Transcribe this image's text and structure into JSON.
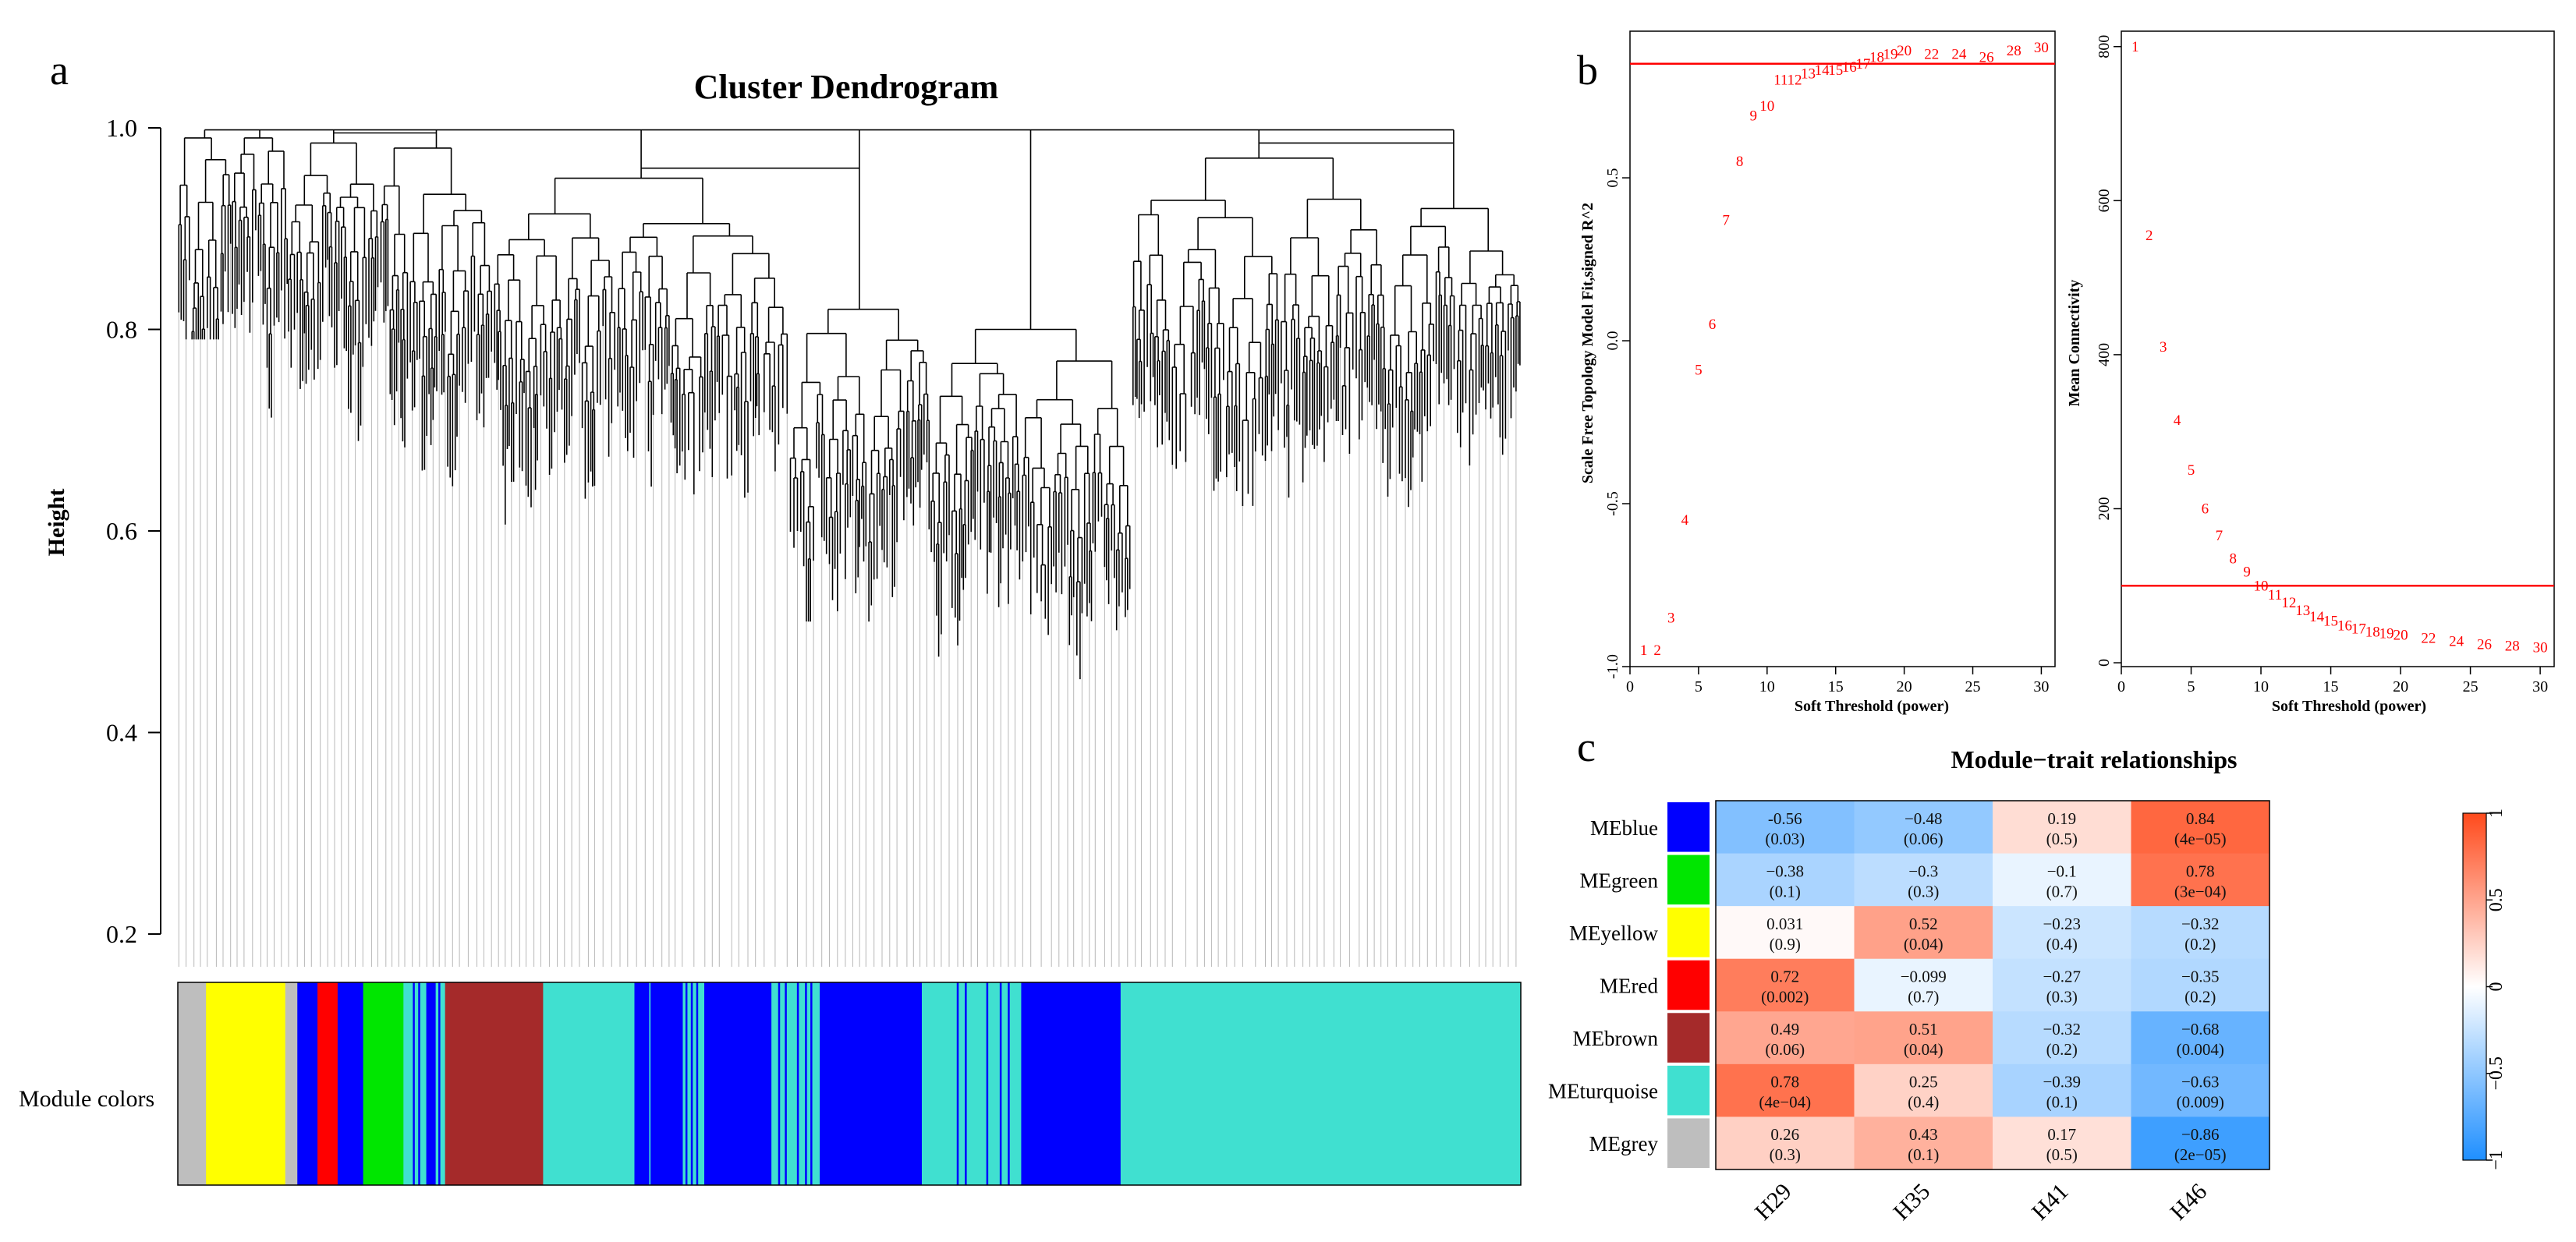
{
  "panel_labels": [
    "a",
    "b",
    "c"
  ],
  "chart_data": [
    {
      "type": "dendrogram",
      "id": "a",
      "title": "Cluster Dendrogram",
      "ylabel": "Height",
      "xlabel": "",
      "ylim": [
        0.2,
        1.0
      ],
      "yticks": [
        "0.2",
        "0.4",
        "0.6",
        "0.8",
        "1.0"
      ],
      "yticks_values": [
        0.2,
        0.4,
        0.6,
        0.8,
        1.0
      ],
      "color_bar_label": "Module colors",
      "module_segments": [
        {
          "module": "grey",
          "from": 0.0,
          "to": 0.021
        },
        {
          "module": "yellow",
          "from": 0.021,
          "to": 0.08
        },
        {
          "module": "grey",
          "from": 0.08,
          "to": 0.089
        },
        {
          "module": "blue",
          "from": 0.089,
          "to": 0.104
        },
        {
          "module": "red",
          "from": 0.104,
          "to": 0.119
        },
        {
          "module": "blue",
          "from": 0.119,
          "to": 0.138
        },
        {
          "module": "green",
          "from": 0.138,
          "to": 0.168
        },
        {
          "module": "turquoise",
          "from": 0.168,
          "to": 0.185
        },
        {
          "module": "blue",
          "from": 0.185,
          "to": 0.192
        },
        {
          "module": "turquoise",
          "from": 0.192,
          "to": 0.199
        },
        {
          "module": "brown",
          "from": 0.199,
          "to": 0.272
        },
        {
          "module": "turquoise",
          "from": 0.272,
          "to": 0.34
        },
        {
          "module": "blue",
          "from": 0.34,
          "to": 0.351
        },
        {
          "module": "turquoise",
          "from": 0.351,
          "to": 0.352
        },
        {
          "module": "blue",
          "from": 0.352,
          "to": 0.376
        },
        {
          "module": "turquoise",
          "from": 0.376,
          "to": 0.392
        },
        {
          "module": "blue",
          "from": 0.392,
          "to": 0.442
        },
        {
          "module": "turquoise",
          "from": 0.442,
          "to": 0.478
        },
        {
          "module": "blue",
          "from": 0.478,
          "to": 0.554
        },
        {
          "module": "turquoise",
          "from": 0.554,
          "to": 0.628
        },
        {
          "module": "blue",
          "from": 0.628,
          "to": 0.702
        },
        {
          "module": "turquoise",
          "from": 0.702,
          "to": 1.0
        }
      ],
      "module_colors": {
        "grey": "#bebebe",
        "yellow": "#ffff00",
        "blue": "#0000ff",
        "red": "#ff0000",
        "green": "#00e600",
        "turquoise": "#40e0d0",
        "brown": "#a52a2a"
      }
    },
    {
      "type": "scatter",
      "id": "b-left",
      "title": "",
      "xlabel": "Soft Threshold (power)",
      "ylabel": "Scale Free Topology Model Fit,signed R^2",
      "xlim": [
        0,
        31
      ],
      "ylim": [
        -1.0,
        0.95
      ],
      "xticks": [
        "0",
        "5",
        "10",
        "15",
        "20",
        "25",
        "30"
      ],
      "xticks_values": [
        0,
        5,
        10,
        15,
        20,
        25,
        30
      ],
      "yticks": [
        "-1.0",
        "-0.5",
        "0.0",
        "0.5"
      ],
      "yticks_values": [
        -1.0,
        -0.5,
        0.0,
        0.5
      ],
      "hline": 0.85,
      "points": [
        {
          "x": 1,
          "y": -0.95,
          "label": "1"
        },
        {
          "x": 2,
          "y": -0.95,
          "label": "2"
        },
        {
          "x": 3,
          "y": -0.85,
          "label": "3"
        },
        {
          "x": 4,
          "y": -0.55,
          "label": "4"
        },
        {
          "x": 5,
          "y": -0.09,
          "label": "5"
        },
        {
          "x": 6,
          "y": 0.05,
          "label": "6"
        },
        {
          "x": 7,
          "y": 0.37,
          "label": "7"
        },
        {
          "x": 8,
          "y": 0.55,
          "label": "8"
        },
        {
          "x": 9,
          "y": 0.69,
          "label": "9"
        },
        {
          "x": 10,
          "y": 0.72,
          "label": "10"
        },
        {
          "x": 11,
          "y": 0.8,
          "label": "11"
        },
        {
          "x": 12,
          "y": 0.8,
          "label": "12"
        },
        {
          "x": 13,
          "y": 0.82,
          "label": "13"
        },
        {
          "x": 14,
          "y": 0.83,
          "label": "14"
        },
        {
          "x": 15,
          "y": 0.83,
          "label": "15"
        },
        {
          "x": 16,
          "y": 0.84,
          "label": "16"
        },
        {
          "x": 17,
          "y": 0.85,
          "label": "17"
        },
        {
          "x": 18,
          "y": 0.87,
          "label": "18"
        },
        {
          "x": 19,
          "y": 0.88,
          "label": "19"
        },
        {
          "x": 20,
          "y": 0.89,
          "label": "20"
        },
        {
          "x": 22,
          "y": 0.88,
          "label": "22"
        },
        {
          "x": 24,
          "y": 0.88,
          "label": "24"
        },
        {
          "x": 26,
          "y": 0.87,
          "label": "26"
        },
        {
          "x": 28,
          "y": 0.89,
          "label": "28"
        },
        {
          "x": 30,
          "y": 0.9,
          "label": "30"
        }
      ]
    },
    {
      "type": "scatter",
      "id": "b-right",
      "title": "",
      "xlabel": "Soft Threshold (power)",
      "ylabel": "Mean Connectivity",
      "xlim": [
        0,
        31
      ],
      "ylim": [
        -5,
        820
      ],
      "xticks": [
        "0",
        "5",
        "10",
        "15",
        "20",
        "25",
        "30"
      ],
      "xticks_values": [
        0,
        5,
        10,
        15,
        20,
        25,
        30
      ],
      "yticks": [
        "0",
        "200",
        "400",
        "600",
        "800"
      ],
      "yticks_values": [
        0,
        200,
        400,
        600,
        800
      ],
      "hline": 100,
      "points": [
        {
          "x": 1,
          "y": 800,
          "label": "1"
        },
        {
          "x": 2,
          "y": 555,
          "label": "2"
        },
        {
          "x": 3,
          "y": 410,
          "label": "3"
        },
        {
          "x": 4,
          "y": 315,
          "label": "4"
        },
        {
          "x": 5,
          "y": 250,
          "label": "5"
        },
        {
          "x": 6,
          "y": 200,
          "label": "6"
        },
        {
          "x": 7,
          "y": 165,
          "label": "7"
        },
        {
          "x": 8,
          "y": 135,
          "label": "8"
        },
        {
          "x": 9,
          "y": 118,
          "label": "9"
        },
        {
          "x": 10,
          "y": 100,
          "label": "10"
        },
        {
          "x": 11,
          "y": 88,
          "label": "11"
        },
        {
          "x": 12,
          "y": 78,
          "label": "12"
        },
        {
          "x": 13,
          "y": 68,
          "label": "13"
        },
        {
          "x": 14,
          "y": 60,
          "label": "14"
        },
        {
          "x": 15,
          "y": 54,
          "label": "15"
        },
        {
          "x": 16,
          "y": 48,
          "label": "16"
        },
        {
          "x": 17,
          "y": 44,
          "label": "17"
        },
        {
          "x": 18,
          "y": 40,
          "label": "18"
        },
        {
          "x": 19,
          "y": 38,
          "label": "19"
        },
        {
          "x": 20,
          "y": 36,
          "label": "20"
        },
        {
          "x": 22,
          "y": 32,
          "label": "22"
        },
        {
          "x": 24,
          "y": 28,
          "label": "24"
        },
        {
          "x": 26,
          "y": 24,
          "label": "26"
        },
        {
          "x": 28,
          "y": 22,
          "label": "28"
        },
        {
          "x": 30,
          "y": 20,
          "label": "30"
        }
      ]
    },
    {
      "type": "heatmap",
      "id": "c",
      "title": "Module−trait relationships",
      "rows": [
        "MEblue",
        "MEgreen",
        "MEyellow",
        "MEred",
        "MEbrown",
        "MEturquoise",
        "MEgrey"
      ],
      "row_colors": [
        "#0000ff",
        "#00e600",
        "#ffff00",
        "#ff0000",
        "#a52a2a",
        "#40e0d0",
        "#bebebe"
      ],
      "columns": [
        "H29",
        "H35",
        "H41",
        "H46"
      ],
      "values": [
        [
          -0.56,
          -0.48,
          0.19,
          0.84
        ],
        [
          -0.38,
          -0.3,
          -0.1,
          0.78
        ],
        [
          0.031,
          0.52,
          -0.23,
          -0.32
        ],
        [
          0.72,
          -0.099,
          -0.27,
          -0.35
        ],
        [
          0.49,
          0.51,
          -0.32,
          -0.68
        ],
        [
          0.78,
          0.25,
          -0.39,
          -0.63
        ],
        [
          0.26,
          0.43,
          0.17,
          -0.86
        ]
      ],
      "labels": [
        [
          "-0.56",
          "−0.48",
          "0.19",
          "0.84"
        ],
        [
          "−0.38",
          "−0.3",
          "−0.1",
          "0.78"
        ],
        [
          "0.031",
          "0.52",
          "−0.23",
          "−0.32"
        ],
        [
          "0.72",
          "−0.099",
          "−0.27",
          "−0.35"
        ],
        [
          "0.49",
          "0.51",
          "−0.32",
          "−0.68"
        ],
        [
          "0.78",
          "0.25",
          "−0.39",
          "−0.63"
        ],
        [
          "0.26",
          "0.43",
          "0.17",
          "−0.86"
        ]
      ],
      "pvalues": [
        [
          "(0.03)",
          "(0.06)",
          "(0.5)",
          "(4e−05)"
        ],
        [
          "(0.1)",
          "(0.3)",
          "(0.7)",
          "(3e−04)"
        ],
        [
          "(0.9)",
          "(0.04)",
          "(0.4)",
          "(0.2)"
        ],
        [
          "(0.002)",
          "(0.7)",
          "(0.3)",
          "(0.2)"
        ],
        [
          "(0.06)",
          "(0.04)",
          "(0.2)",
          "(0.004)"
        ],
        [
          "(4e−04)",
          "(0.4)",
          "(0.1)",
          "(0.009)"
        ],
        [
          "(0.3)",
          "(0.1)",
          "(0.5)",
          "(2e−05)"
        ]
      ],
      "colorbar_ticks": [
        "1",
        "0.5",
        "0",
        "−0.5",
        "−1"
      ],
      "colorbar_values": [
        1,
        0.5,
        0,
        -0.5,
        -1
      ],
      "scale_low": "#1f8fff",
      "scale_mid": "#ffffff",
      "scale_high": "#ff4a1c"
    }
  ]
}
